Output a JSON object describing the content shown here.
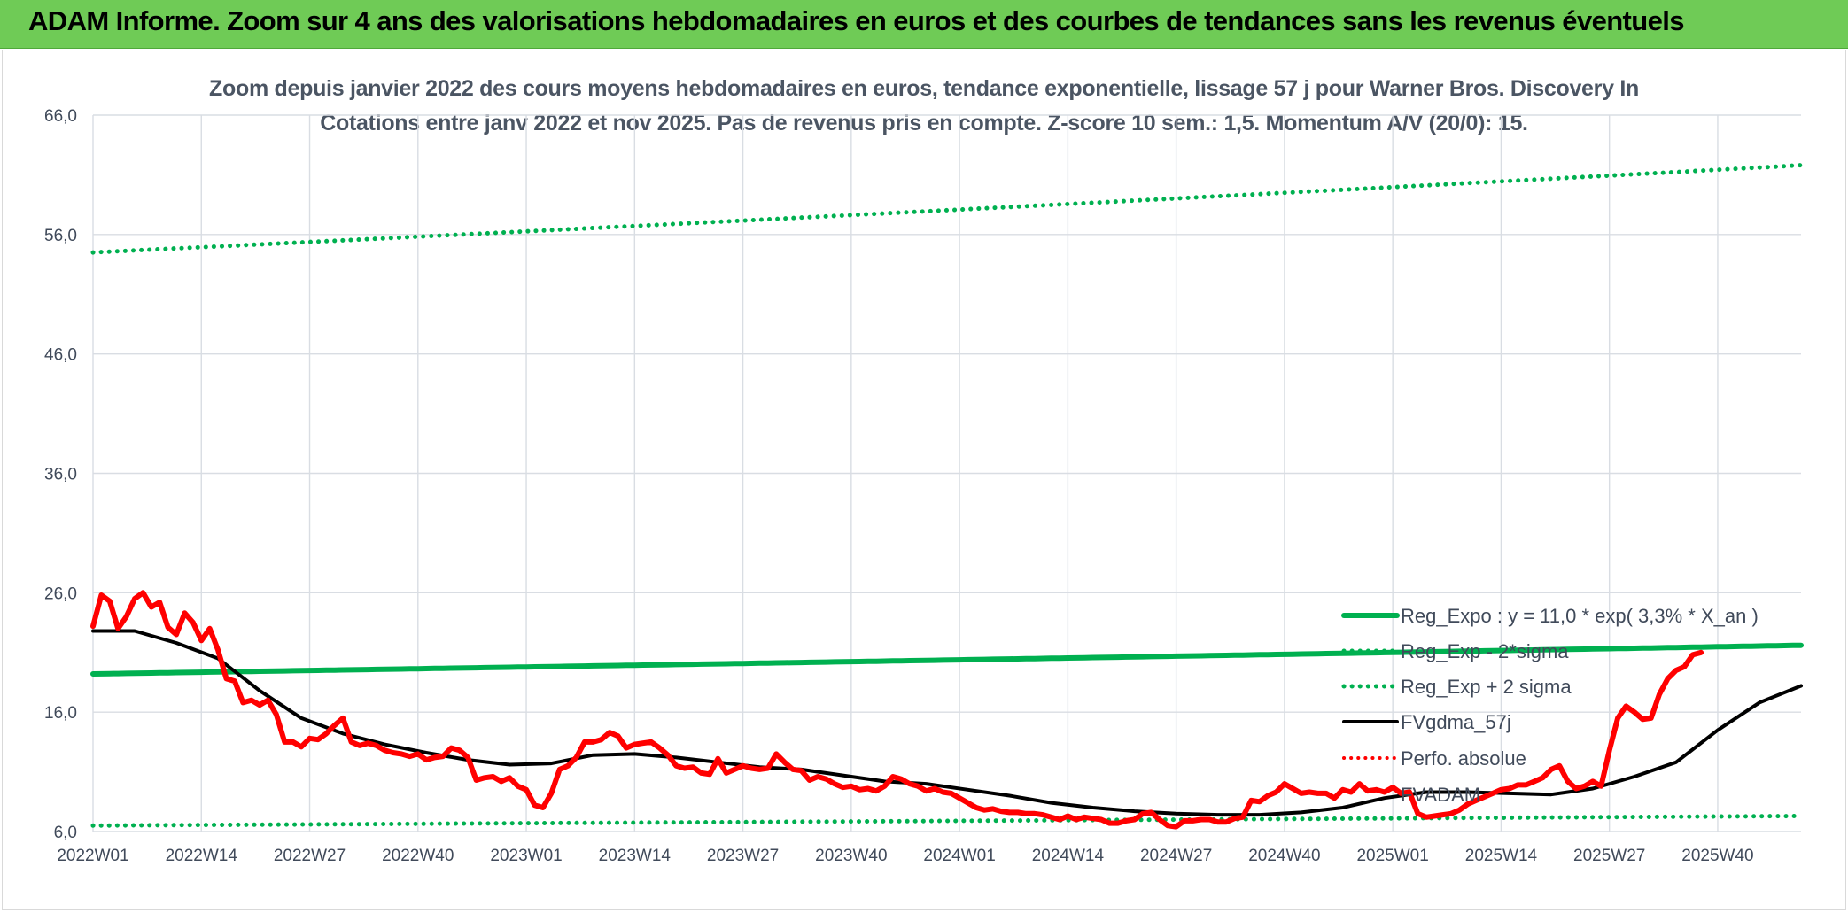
{
  "header": {
    "banner_title": "ADAM Informe. Zoom sur 4 ans des valorisations hebdomadaires en euros et des courbes de tendances sans les revenus éventuels"
  },
  "colors": {
    "banner_bg": "#6fcb56",
    "trend": "#00b050",
    "band": "#00b050",
    "fv": "#000000",
    "price": "#ff0000",
    "grid": "#d9dde3"
  },
  "chart_data": {
    "type": "line",
    "title": "Zoom depuis janvier 2022 des cours moyens hebdomadaires en euros, tendance exponentielle, lissage 57 j pour Warner Bros. Discovery In",
    "subtitle": "Cotations entre janv 2022 et nov 2025. Pas de revenus pris en compte. Z-score 10 sem.: 1,5. Momentum A/V (20/0): 15.",
    "xlabel": "",
    "ylabel": "",
    "ylim": [
      6,
      66
    ],
    "yticks": [
      "66,0",
      "56,0",
      "46,0",
      "36,0",
      "26,0",
      "16,0",
      "6,0"
    ],
    "x_tick_labels": [
      "2022W01",
      "2022W14",
      "2022W27",
      "2022W40",
      "2023W01",
      "2023W14",
      "2023W27",
      "2023W40",
      "2024W01",
      "2024W14",
      "2024W27",
      "2024W40",
      "2025W01",
      "2025W14",
      "2025W27",
      "2025W40"
    ],
    "weeks_total": 205,
    "grid": true,
    "legend_position": "lower-right",
    "series": [
      {
        "name": "Reg_Expo : y = 11,0 * exp( 3,3% *  X_an )",
        "style": "solid-thick",
        "color": "#00b050",
        "start": 19.2,
        "end": 21.6
      },
      {
        "name": "Reg_Exp - 2*sigma",
        "style": "dotted",
        "color": "#00b050",
        "start": 6.5,
        "end": 7.3
      },
      {
        "name": "Reg_Exp + 2 sigma",
        "style": "dotted",
        "color": "#00b050",
        "start": 54.5,
        "end": 61.8
      },
      {
        "name": "FVgdma_57j",
        "style": "solid",
        "color": "#000000",
        "keyframes": [
          [
            0,
            22.8
          ],
          [
            5,
            22.8
          ],
          [
            10,
            21.8
          ],
          [
            15,
            20.5
          ],
          [
            20,
            17.8
          ],
          [
            25,
            15.5
          ],
          [
            30,
            14.2
          ],
          [
            35,
            13.3
          ],
          [
            40,
            12.6
          ],
          [
            45,
            12.0
          ],
          [
            50,
            11.6
          ],
          [
            55,
            11.7
          ],
          [
            60,
            12.4
          ],
          [
            65,
            12.5
          ],
          [
            70,
            12.2
          ],
          [
            75,
            11.8
          ],
          [
            80,
            11.4
          ],
          [
            85,
            11.2
          ],
          [
            90,
            10.7
          ],
          [
            95,
            10.2
          ],
          [
            100,
            10.0
          ],
          [
            105,
            9.5
          ],
          [
            110,
            9.0
          ],
          [
            115,
            8.4
          ],
          [
            120,
            8.0
          ],
          [
            125,
            7.7
          ],
          [
            130,
            7.5
          ],
          [
            135,
            7.4
          ],
          [
            140,
            7.4
          ],
          [
            145,
            7.6
          ],
          [
            150,
            8.0
          ],
          [
            155,
            8.8
          ],
          [
            160,
            9.3
          ],
          [
            165,
            9.3
          ],
          [
            170,
            9.2
          ],
          [
            175,
            9.1
          ],
          [
            180,
            9.6
          ],
          [
            185,
            10.6
          ],
          [
            190,
            11.8
          ],
          [
            195,
            14.5
          ],
          [
            200,
            16.8
          ],
          [
            205,
            18.2
          ]
        ]
      },
      {
        "name": "Perfo. absolue",
        "style": "dotted",
        "color": "#ff0000"
      },
      {
        "name": "FVADAM",
        "style": "solid-thick",
        "color": "#ff0000",
        "keyframes": [
          [
            0,
            23.2
          ],
          [
            1,
            25.8
          ],
          [
            2,
            25.3
          ],
          [
            3,
            23.0
          ],
          [
            4,
            24.0
          ],
          [
            5,
            25.5
          ],
          [
            6,
            26.0
          ],
          [
            7,
            24.8
          ],
          [
            8,
            25.2
          ],
          [
            9,
            23.1
          ],
          [
            10,
            22.5
          ],
          [
            11,
            24.3
          ],
          [
            12,
            23.5
          ],
          [
            13,
            22.0
          ],
          [
            14,
            23.0
          ],
          [
            15,
            21.2
          ],
          [
            16,
            18.8
          ],
          [
            17,
            18.6
          ],
          [
            18,
            16.8
          ],
          [
            19,
            17.0
          ],
          [
            20,
            16.6
          ],
          [
            21,
            17.0
          ],
          [
            22,
            15.8
          ],
          [
            23,
            13.5
          ],
          [
            24,
            13.5
          ],
          [
            25,
            13.1
          ],
          [
            26,
            13.8
          ],
          [
            27,
            13.7
          ],
          [
            28,
            14.2
          ],
          [
            29,
            14.9
          ],
          [
            30,
            15.5
          ],
          [
            31,
            13.5
          ],
          [
            32,
            13.2
          ],
          [
            33,
            13.4
          ],
          [
            34,
            13.2
          ],
          [
            35,
            12.8
          ],
          [
            36,
            12.6
          ],
          [
            37,
            12.5
          ],
          [
            38,
            12.3
          ],
          [
            39,
            12.5
          ],
          [
            40,
            12.0
          ],
          [
            41,
            12.2
          ],
          [
            42,
            12.3
          ],
          [
            43,
            13.0
          ],
          [
            44,
            12.8
          ],
          [
            45,
            12.2
          ],
          [
            46,
            10.3
          ],
          [
            47,
            10.5
          ],
          [
            48,
            10.6
          ],
          [
            49,
            10.2
          ],
          [
            50,
            10.5
          ],
          [
            51,
            9.8
          ],
          [
            52,
            9.5
          ],
          [
            53,
            8.2
          ],
          [
            54,
            8.0
          ],
          [
            55,
            9.2
          ],
          [
            56,
            11.2
          ],
          [
            57,
            11.5
          ],
          [
            58,
            12.2
          ],
          [
            59,
            13.5
          ],
          [
            60,
            13.5
          ],
          [
            61,
            13.7
          ],
          [
            62,
            14.3
          ],
          [
            63,
            14.0
          ],
          [
            64,
            13.0
          ],
          [
            65,
            13.3
          ],
          [
            66,
            13.4
          ],
          [
            67,
            13.5
          ],
          [
            68,
            13.0
          ],
          [
            69,
            12.4
          ],
          [
            70,
            11.5
          ],
          [
            71,
            11.3
          ],
          [
            72,
            11.4
          ],
          [
            73,
            10.9
          ],
          [
            74,
            10.8
          ],
          [
            75,
            12.1
          ],
          [
            76,
            10.9
          ],
          [
            77,
            11.2
          ],
          [
            78,
            11.5
          ],
          [
            79,
            11.3
          ],
          [
            80,
            11.2
          ],
          [
            81,
            11.3
          ],
          [
            82,
            12.5
          ],
          [
            83,
            11.8
          ],
          [
            84,
            11.2
          ],
          [
            85,
            11.1
          ],
          [
            86,
            10.3
          ],
          [
            87,
            10.6
          ],
          [
            88,
            10.4
          ],
          [
            89,
            10.0
          ],
          [
            90,
            9.7
          ],
          [
            91,
            9.8
          ],
          [
            92,
            9.5
          ],
          [
            93,
            9.6
          ],
          [
            94,
            9.4
          ],
          [
            95,
            9.8
          ],
          [
            96,
            10.6
          ],
          [
            97,
            10.4
          ],
          [
            98,
            10.0
          ],
          [
            99,
            9.8
          ],
          [
            100,
            9.4
          ],
          [
            101,
            9.6
          ],
          [
            102,
            9.3
          ],
          [
            103,
            9.2
          ],
          [
            104,
            8.8
          ],
          [
            105,
            8.4
          ],
          [
            106,
            8.0
          ],
          [
            107,
            7.8
          ],
          [
            108,
            7.9
          ],
          [
            109,
            7.7
          ],
          [
            110,
            7.6
          ],
          [
            111,
            7.6
          ],
          [
            112,
            7.5
          ],
          [
            113,
            7.5
          ],
          [
            114,
            7.4
          ],
          [
            115,
            7.2
          ],
          [
            116,
            7.0
          ],
          [
            117,
            7.3
          ],
          [
            118,
            7.0
          ],
          [
            119,
            7.2
          ],
          [
            120,
            7.1
          ],
          [
            121,
            7.0
          ],
          [
            122,
            6.7
          ],
          [
            123,
            6.7
          ],
          [
            124,
            6.9
          ],
          [
            125,
            7.0
          ],
          [
            126,
            7.5
          ],
          [
            127,
            7.6
          ],
          [
            128,
            7.0
          ],
          [
            129,
            6.5
          ],
          [
            130,
            6.4
          ],
          [
            131,
            6.9
          ],
          [
            132,
            6.9
          ],
          [
            133,
            7.0
          ],
          [
            134,
            7.0
          ],
          [
            135,
            6.8
          ],
          [
            136,
            6.8
          ],
          [
            137,
            7.1
          ],
          [
            138,
            7.2
          ],
          [
            139,
            8.6
          ],
          [
            140,
            8.5
          ],
          [
            141,
            9.0
          ],
          [
            142,
            9.3
          ],
          [
            143,
            10.0
          ],
          [
            144,
            9.6
          ],
          [
            145,
            9.2
          ],
          [
            146,
            9.3
          ],
          [
            147,
            9.2
          ],
          [
            148,
            9.2
          ],
          [
            149,
            8.8
          ],
          [
            150,
            9.5
          ],
          [
            151,
            9.3
          ],
          [
            152,
            10.0
          ],
          [
            153,
            9.4
          ],
          [
            154,
            9.5
          ],
          [
            155,
            9.3
          ],
          [
            156,
            9.7
          ],
          [
            157,
            9.2
          ],
          [
            158,
            9.3
          ],
          [
            159,
            7.5
          ],
          [
            160,
            7.2
          ],
          [
            161,
            7.3
          ],
          [
            162,
            7.4
          ],
          [
            163,
            7.5
          ],
          [
            164,
            7.8
          ],
          [
            165,
            8.3
          ],
          [
            166,
            8.6
          ],
          [
            167,
            8.9
          ],
          [
            168,
            9.2
          ],
          [
            169,
            9.5
          ],
          [
            170,
            9.6
          ],
          [
            171,
            9.9
          ],
          [
            172,
            9.9
          ],
          [
            173,
            10.2
          ],
          [
            174,
            10.5
          ],
          [
            175,
            11.2
          ],
          [
            176,
            11.5
          ],
          [
            177,
            10.2
          ],
          [
            178,
            9.6
          ],
          [
            179,
            9.8
          ],
          [
            180,
            10.2
          ],
          [
            181,
            9.8
          ],
          [
            182,
            12.8
          ],
          [
            183,
            15.5
          ],
          [
            184,
            16.5
          ],
          [
            185,
            16.0
          ],
          [
            186,
            15.4
          ],
          [
            187,
            15.5
          ],
          [
            188,
            17.5
          ],
          [
            189,
            18.8
          ],
          [
            190,
            19.5
          ],
          [
            191,
            19.8
          ],
          [
            192,
            20.8
          ],
          [
            193,
            21.0
          ]
        ]
      }
    ]
  }
}
